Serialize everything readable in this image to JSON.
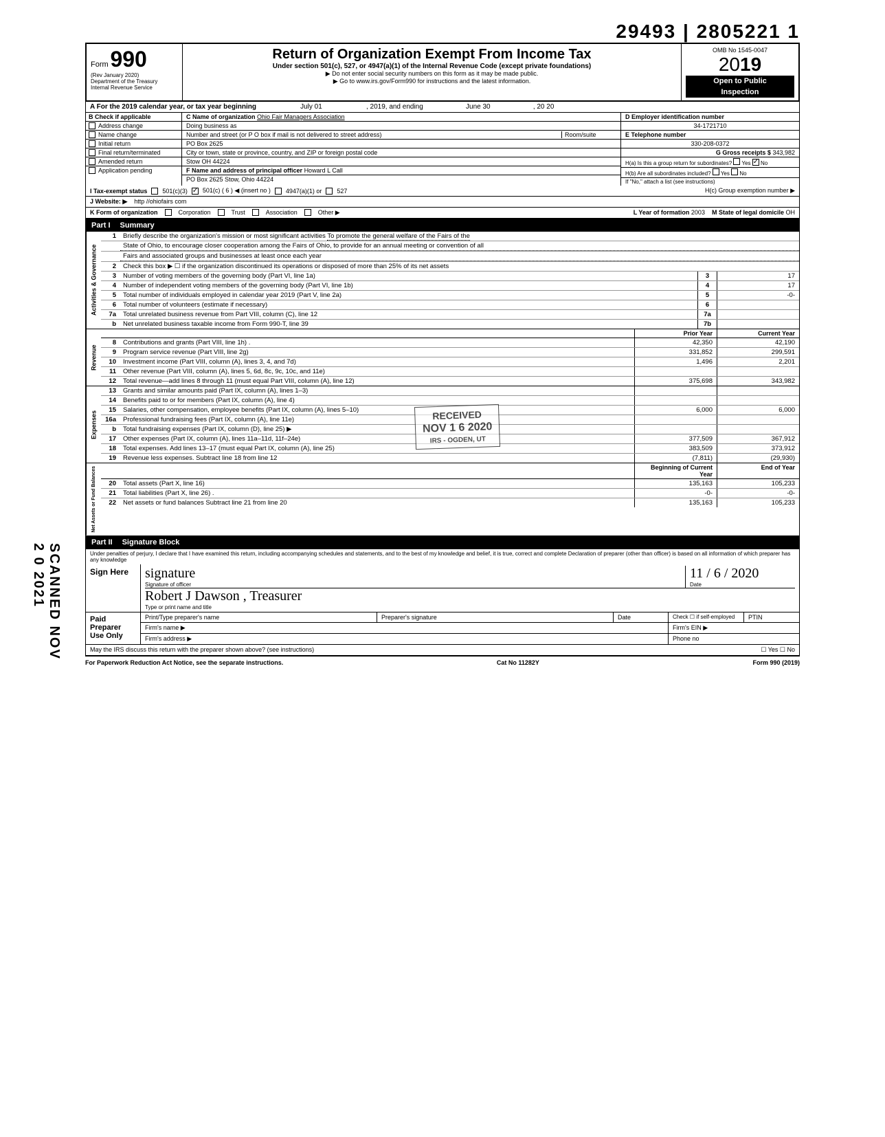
{
  "top_stamp": "29493 | 2805221    1",
  "header": {
    "form_label": "Form",
    "form_number": "990",
    "rev": "(Rev  January 2020)",
    "dept": "Department of the Treasury",
    "irs": "Internal Revenue Service",
    "title": "Return of Organization Exempt From Income Tax",
    "subtitle": "Under section 501(c), 527, or 4947(a)(1) of the Internal Revenue Code (except private foundations)",
    "warn1": "▶ Do not enter social security numbers on this form as it may be made public.",
    "warn2": "▶ Go to www.irs.gov/Form990 for instructions and the latest information.",
    "omb": "OMB No  1545-0047",
    "year_prefix": "20",
    "year": "19",
    "open1": "Open to Public",
    "open2": "Inspection"
  },
  "rowA": {
    "label": "A   For the 2019 calendar year, or tax year beginning",
    "begin": "July 01",
    "mid": ", 2019, and ending",
    "end": "June 30",
    "tail": ", 20  20"
  },
  "B": {
    "head": "B  Check if applicable",
    "items": [
      "Address change",
      "Name change",
      "Initial return",
      "Final return/terminated",
      "Amended return",
      "Application pending"
    ]
  },
  "C": {
    "name_label": "C Name of organization",
    "name": "Ohio Fair Managers Association",
    "dba_label": "Doing business as",
    "street_label": "Number and street (or P O  box if mail is not delivered to street address)",
    "room_label": "Room/suite",
    "street": "PO Box 2625",
    "city_label": "City or town, state or province, country, and ZIP or foreign postal code",
    "city": "Stow OH 44224",
    "F_label": "F Name and address of principal officer",
    "F_name": "Howard L Call",
    "F_addr": "PO Box 2625 Stow, Ohio 44224"
  },
  "D": {
    "label": "D Employer identification number",
    "value": "34-1721710"
  },
  "E": {
    "label": "E Telephone number",
    "value": "330-208-0372"
  },
  "G": {
    "label": "G Gross receipts $",
    "value": "343,982"
  },
  "H": {
    "a": "H(a) Is this a group return for subordinates?",
    "b": "H(b) Are all subordinates included?",
    "yesno": "Yes      No",
    "note": "If \"No,\" attach a list  (see instructions)",
    "c": "H(c) Group exemption number ▶"
  },
  "I": {
    "label": "I     Tax-exempt status",
    "opts": [
      "501(c)(3)",
      "501(c) (      6      ) ◀ (insert no )",
      "4947(a)(1) or",
      "527"
    ]
  },
  "J": {
    "label": "J    Website: ▶",
    "value": "http //ohiofairs com"
  },
  "K": {
    "label": "K   Form of organization",
    "opts": [
      "Corporation",
      "Trust",
      "Association",
      "Other ▶"
    ],
    "L": "L Year of formation",
    "Lval": "2003",
    "M": "M State of legal domicile",
    "Mval": "OH"
  },
  "partI": {
    "tag": "Part I",
    "title": "Summary"
  },
  "summary": {
    "gov_label": "Activities & Governance",
    "rev_label": "Revenue",
    "exp_label": "Expenses",
    "net_label": "Net Assets or Fund Balances",
    "line1_desc": "Briefly describe the organization's mission or most significant activities",
    "line1_text1": "To promote the general welfare of the Fairs of the",
    "line1_text2": "State of Ohio, to encourage closer cooperation among the Fairs of Ohio, to provide for an annual meeting or convention of all",
    "line1_text3": "Fairs and associated groups and businesses at least once each year",
    "line2": "Check this box ▶ ☐ if the organization discontinued its operations or disposed of more than 25% of its net assets",
    "lines_gov": [
      {
        "n": "3",
        "d": "Number of voting members of the governing body (Part VI, line 1a)",
        "box": "3",
        "v": "17"
      },
      {
        "n": "4",
        "d": "Number of independent voting members of the governing body (Part VI, line 1b)",
        "box": "4",
        "v": "17"
      },
      {
        "n": "5",
        "d": "Total number of individuals employed in calendar year 2019 (Part V, line 2a)",
        "box": "5",
        "v": "-0-"
      },
      {
        "n": "6",
        "d": "Total number of volunteers (estimate if necessary)",
        "box": "6",
        "v": ""
      },
      {
        "n": "7a",
        "d": "Total unrelated business revenue from Part VIII, column (C), line 12",
        "box": "7a",
        "v": ""
      },
      {
        "n": "b",
        "d": "Net unrelated business taxable income from Form 990-T, line 39",
        "box": "7b",
        "v": ""
      }
    ],
    "col_hdr_prior": "Prior Year",
    "col_hdr_curr": "Current Year",
    "lines_rev": [
      {
        "n": "8",
        "d": "Contributions and grants (Part VIII, line 1h) .",
        "p": "42,350",
        "c": "42,190"
      },
      {
        "n": "9",
        "d": "Program service revenue (Part VIII, line 2g)",
        "p": "331,852",
        "c": "299,591"
      },
      {
        "n": "10",
        "d": "Investment income (Part VIII, column (A), lines 3, 4, and 7d)",
        "p": "1,496",
        "c": "2,201"
      },
      {
        "n": "11",
        "d": "Other revenue (Part VIII, column (A), lines 5, 6d, 8c, 9c, 10c, and 11e)",
        "p": "",
        "c": ""
      },
      {
        "n": "12",
        "d": "Total revenue—add lines 8 through 11 (must equal Part VIII, column (A), line 12)",
        "p": "375,698",
        "c": "343,982"
      }
    ],
    "lines_exp": [
      {
        "n": "13",
        "d": "Grants and similar amounts paid (Part IX, column (A), lines 1–3)",
        "p": "",
        "c": ""
      },
      {
        "n": "14",
        "d": "Benefits paid to or for members (Part IX, column (A), line 4)",
        "p": "",
        "c": ""
      },
      {
        "n": "15",
        "d": "Salaries, other compensation, employee benefits (Part IX, column (A), lines 5–10)",
        "p": "6,000",
        "c": "6,000"
      },
      {
        "n": "16a",
        "d": "Professional fundraising fees (Part IX, column (A),  line 11e)",
        "p": "",
        "c": ""
      },
      {
        "n": "b",
        "d": "Total fundraising expenses (Part IX, column (D), line 25) ▶",
        "p": "",
        "c": ""
      },
      {
        "n": "17",
        "d": "Other expenses (Part IX, column (A), lines 11a–11d, 11f–24e)",
        "p": "377,509",
        "c": "367,912"
      },
      {
        "n": "18",
        "d": "Total expenses. Add lines 13–17 (must equal Part IX, column (A), line 25)",
        "p": "383,509",
        "c": "373,912"
      },
      {
        "n": "19",
        "d": "Revenue less expenses. Subtract line 18 from line 12",
        "p": "(7,811)",
        "c": "(29,930)"
      }
    ],
    "col_hdr_begin": "Beginning of Current Year",
    "col_hdr_end": "End of Year",
    "lines_net": [
      {
        "n": "20",
        "d": "Total assets (Part X, line 16)",
        "p": "135,163",
        "c": "105,233"
      },
      {
        "n": "21",
        "d": "Total liabilities (Part X, line 26)  .",
        "p": "-0-",
        "c": "-0-"
      },
      {
        "n": "22",
        "d": "Net assets or fund balances  Subtract line 21 from line 20",
        "p": "135,163",
        "c": "105,233"
      }
    ]
  },
  "partII": {
    "tag": "Part II",
    "title": "Signature Block"
  },
  "sig": {
    "perjury": "Under penalties of perjury, I declare that I have examined this return, including accompanying schedules and statements, and to the best of my knowledge  and belief, it is true, correct  and complete  Declaration of preparer (other than officer) is based on all information of which preparer has any knowledge",
    "sign": "Sign Here",
    "sig_of": "Signature of officer",
    "date_lbl": "Date",
    "date_val": "11 / 6 / 2020",
    "typed_lbl": "Type or print name and title",
    "typed_val": "Robert J  Dawson ,  Treasurer",
    "paid": "Paid Preparer Use Only",
    "pp_name": "Print/Type preparer's name",
    "pp_sig": "Preparer's signature",
    "pp_date": "Date",
    "pp_check": "Check ☐ if self-employed",
    "pp_ptin": "PTIN",
    "firm_name": "Firm's name    ▶",
    "firm_ein": "Firm's EIN ▶",
    "firm_addr": "Firm's address ▶",
    "phone": "Phone no",
    "may": "May the IRS discuss this return with the preparer shown above? (see instructions)",
    "yesno": "☐ Yes   ☐ No"
  },
  "footer": {
    "left": "For Paperwork Reduction Act Notice, see the separate instructions.",
    "mid": "Cat  No  11282Y",
    "right": "Form 990 (2019)"
  },
  "side_scan": "SCANNED NOV 2 0 2021",
  "stamp": {
    "l1": "RECEIVED",
    "l2": "NOV 1 6 2020",
    "l3": "IRS - OGDEN, UT"
  }
}
